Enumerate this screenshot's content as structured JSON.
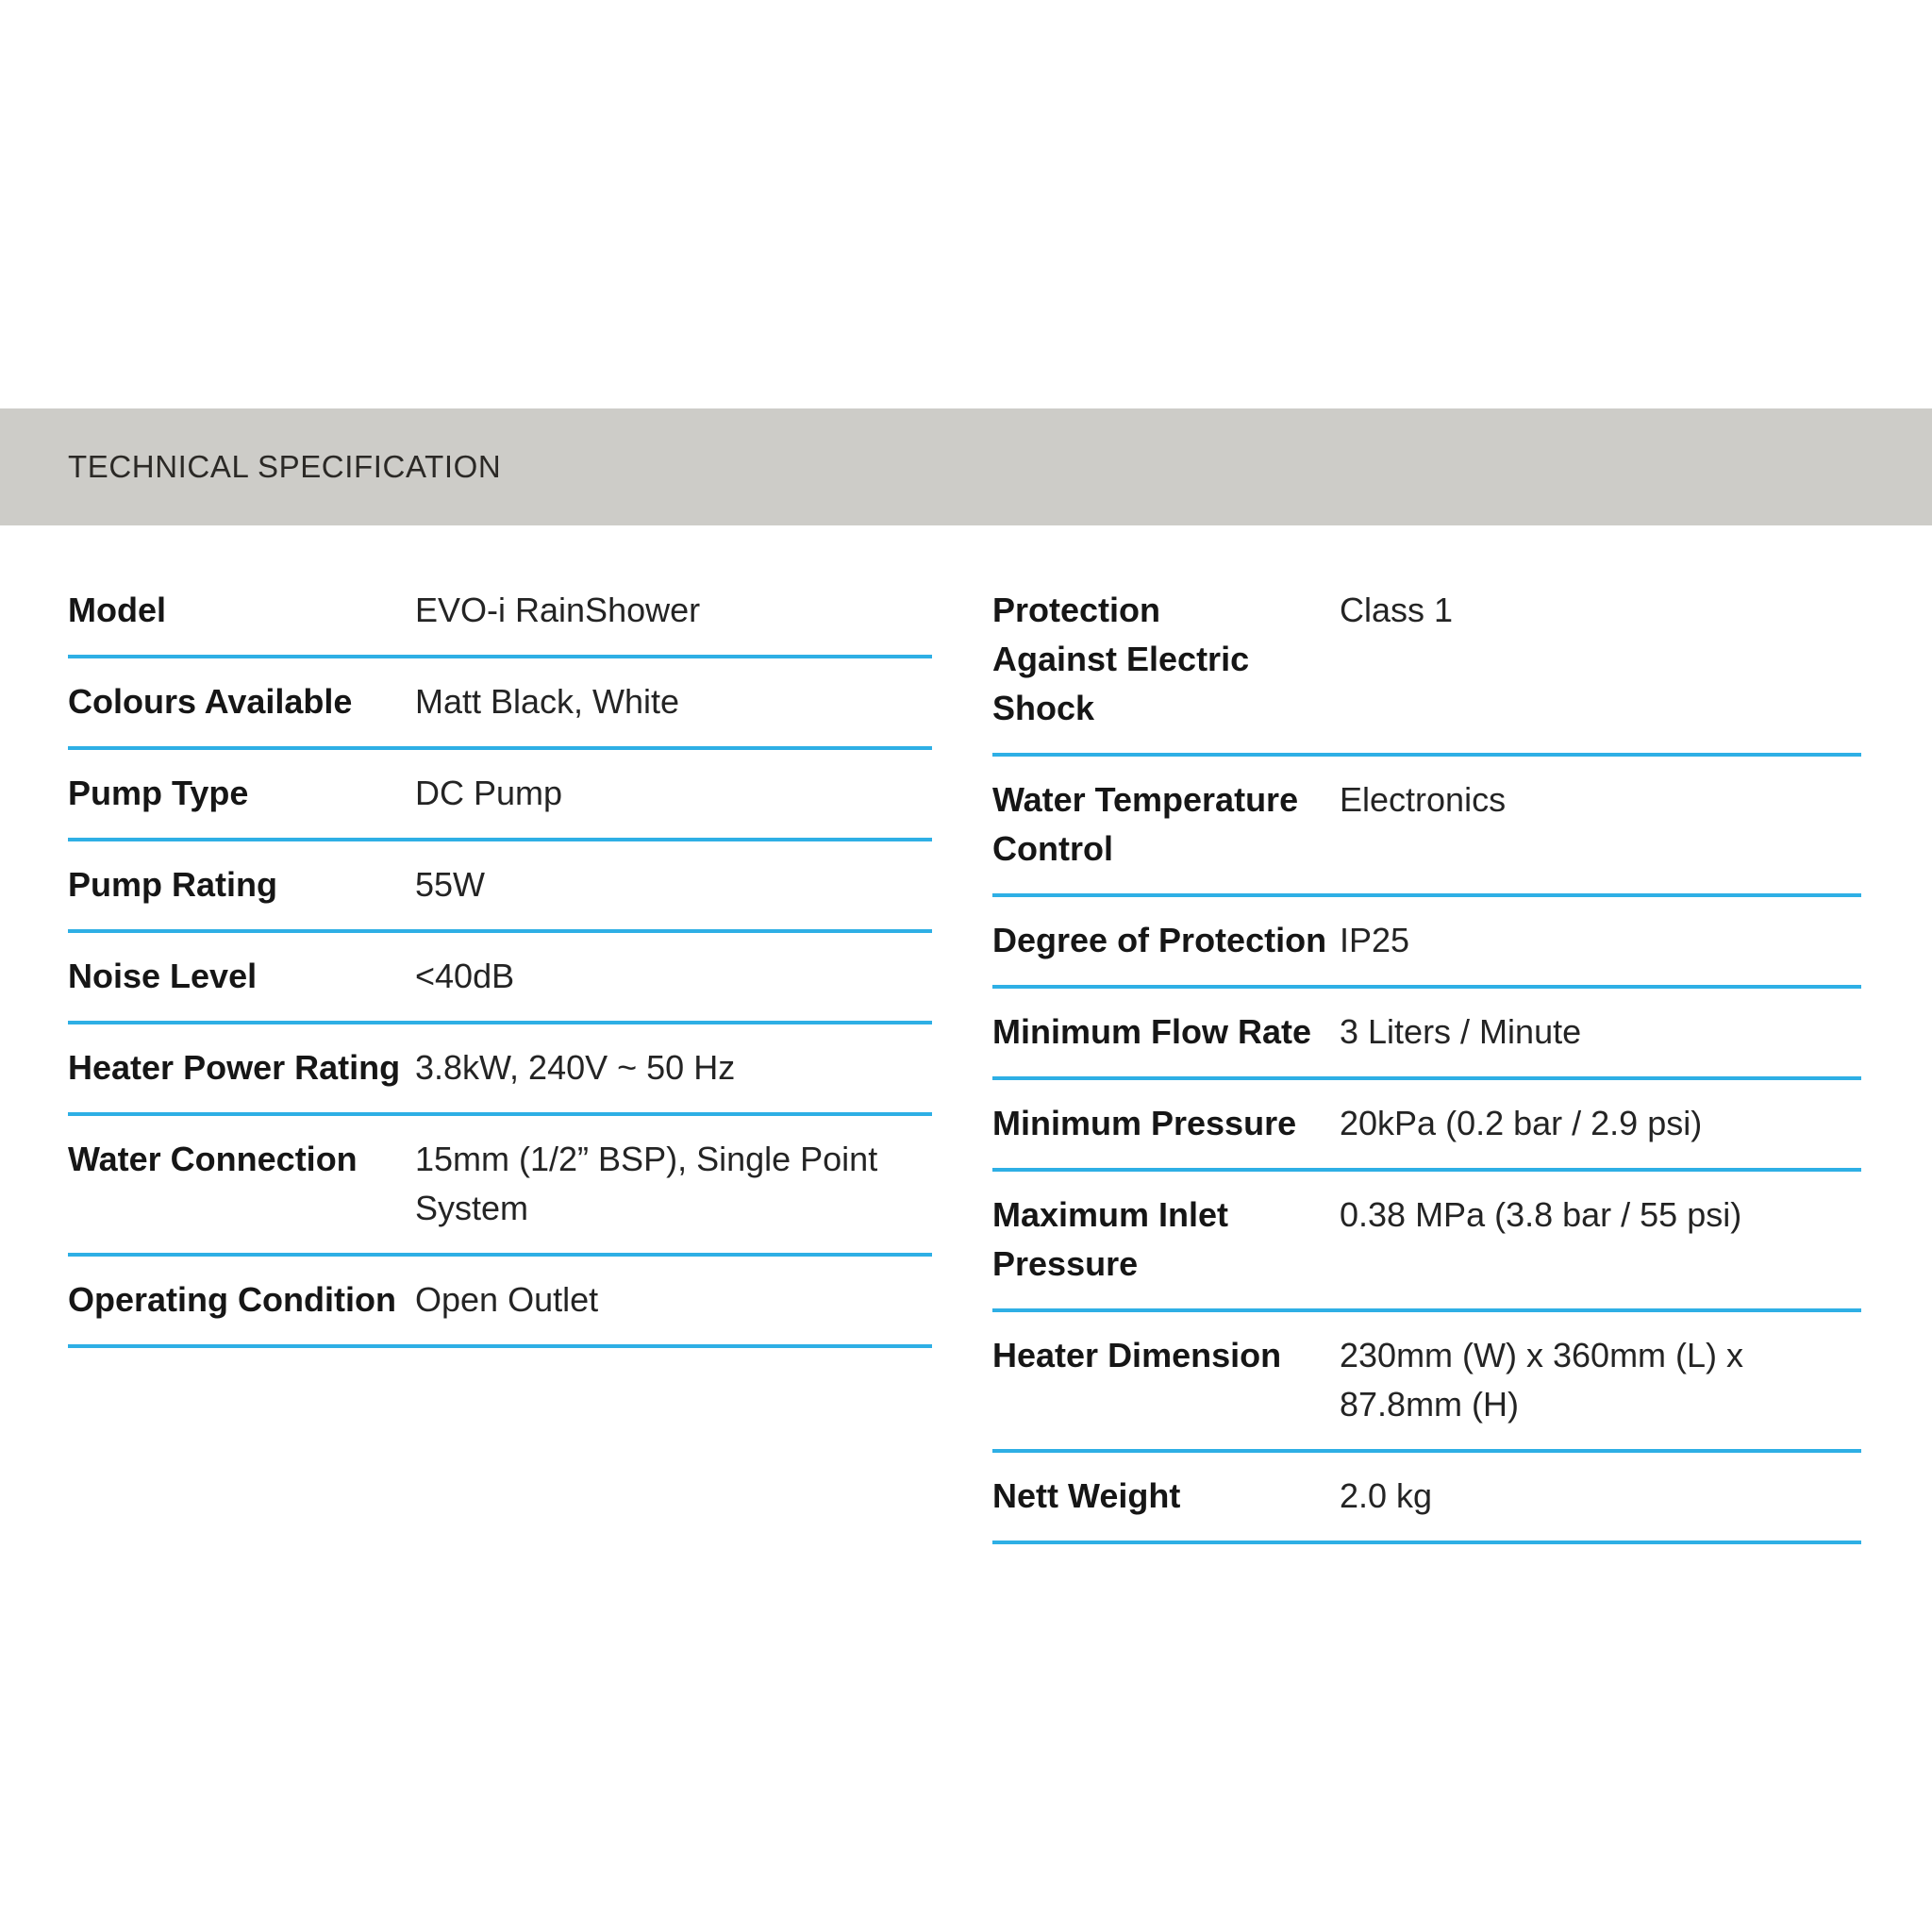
{
  "header": {
    "title": "TECHNICAL SPECIFICATION"
  },
  "table": {
    "left_column": [
      {
        "label": "Model",
        "value": "EVO-i RainShower"
      },
      {
        "label": "Colours Available",
        "value": "Matt Black, White"
      },
      {
        "label": "Pump Type",
        "value": "DC Pump"
      },
      {
        "label": "Pump Rating",
        "value": "55W"
      },
      {
        "label": "Noise Level",
        "value": "<40dB"
      },
      {
        "label": "Heater Power Rating",
        "value": "3.8kW, 240V ~ 50 Hz"
      },
      {
        "label": "Water Connection",
        "value": "15mm (1/2” BSP), Single Point\nSystem"
      },
      {
        "label": "Operating Condition",
        "value": "Open Outlet"
      }
    ],
    "right_column": [
      {
        "label": "Protection\nAgainst Electric\nShock",
        "value": "Class 1"
      },
      {
        "label": "Water Temperature\nControl",
        "value": "Electronics"
      },
      {
        "label": "Degree of Protection",
        "value": "IP25"
      },
      {
        "label": "Minimum Flow Rate",
        "value": "3 Liters / Minute"
      },
      {
        "label": "Minimum Pressure",
        "value": "20kPa (0.2 bar / 2.9 psi)"
      },
      {
        "label": "Maximum Inlet\nPressure",
        "value": "0.38 MPa (3.8 bar / 55 psi)"
      },
      {
        "label": "Heater Dimension",
        "value": "230mm (W) x 360mm (L) x\n87.8mm (H)"
      },
      {
        "label": "Nett Weight",
        "value": "2.0 kg"
      }
    ]
  },
  "colors": {
    "accent_line": "#2eafe5",
    "header_bar": "#cdccc8"
  }
}
